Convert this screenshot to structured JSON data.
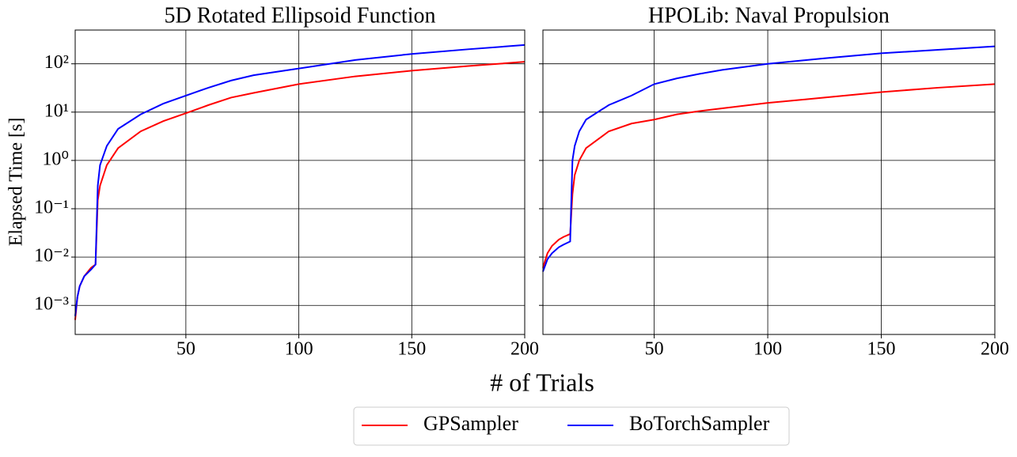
{
  "chart_data": [
    {
      "type": "line",
      "title": "5D Rotated Ellipsoid Function",
      "x": [
        1,
        2,
        3,
        5,
        8,
        10,
        11,
        12,
        15,
        20,
        30,
        40,
        50,
        60,
        70,
        80,
        100,
        125,
        150,
        175,
        200
      ],
      "series": [
        {
          "name": "GPSampler",
          "color": "#ff0000",
          "values": [
            0.0005,
            0.0015,
            0.0025,
            0.004,
            0.006,
            0.007,
            0.15,
            0.3,
            0.8,
            1.8,
            4,
            6.5,
            9.5,
            14,
            20,
            25,
            38,
            55,
            72,
            90,
            110
          ]
        },
        {
          "name": "BoTorchSampler",
          "color": "#0000ff",
          "values": [
            0.0006,
            0.0015,
            0.0025,
            0.004,
            0.0055,
            0.007,
            0.3,
            0.8,
            2,
            4.5,
            9,
            15,
            22,
            32,
            45,
            58,
            80,
            120,
            160,
            200,
            245
          ]
        }
      ],
      "xlim": [
        1,
        200
      ],
      "xticks": [
        50,
        100,
        150,
        200
      ],
      "ylim": [
        0.00025,
        500
      ],
      "ylog": true,
      "grid": true,
      "yticks": [
        {
          "value": 0.001,
          "label": "10⁻³"
        },
        {
          "value": 0.01,
          "label": "10⁻²"
        },
        {
          "value": 0.1,
          "label": "10⁻¹"
        },
        {
          "value": 1,
          "label": "10⁰"
        },
        {
          "value": 10,
          "label": "10¹"
        },
        {
          "value": 100,
          "label": "10²"
        }
      ]
    },
    {
      "type": "line",
      "title": "HPOLib: Naval Propulsion",
      "sharey": true,
      "x": [
        1,
        3,
        5,
        8,
        10,
        13,
        14,
        15,
        17,
        20,
        30,
        40,
        50,
        60,
        70,
        80,
        100,
        125,
        150,
        175,
        200
      ],
      "series": [
        {
          "name": "GPSampler",
          "color": "#ff0000",
          "values": [
            0.006,
            0.012,
            0.017,
            0.023,
            0.026,
            0.03,
            0.2,
            0.5,
            1,
            1.8,
            4,
            5.8,
            7,
            9,
            10.5,
            12,
            15.5,
            20,
            26,
            32,
            38
          ]
        },
        {
          "name": "BoTorchSampler",
          "color": "#0000ff",
          "values": [
            0.005,
            0.009,
            0.012,
            0.016,
            0.018,
            0.021,
            1,
            2,
            4,
            7,
            14,
            22,
            38,
            50,
            62,
            75,
            100,
            130,
            165,
            195,
            230
          ]
        }
      ],
      "xlim": [
        1,
        200
      ],
      "xticks": [
        50,
        100,
        150,
        200
      ],
      "grid": true
    }
  ],
  "figure": {
    "xlabel": "# of Trials",
    "ylabel": "Elapsed Time [s]",
    "legend": "bottom"
  }
}
